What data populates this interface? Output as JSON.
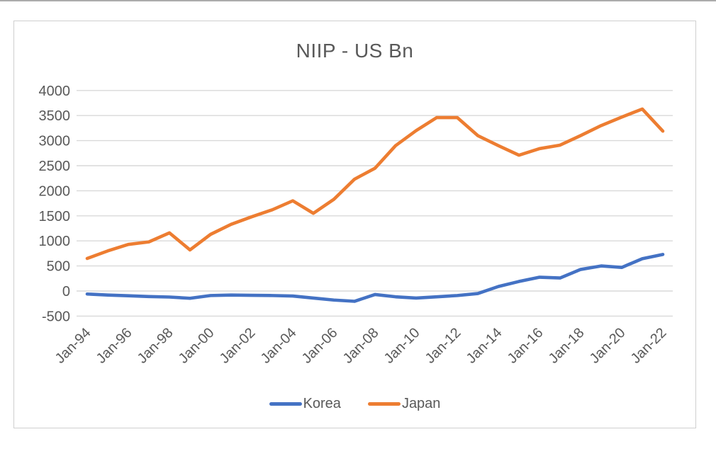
{
  "chart_data": {
    "type": "line",
    "title": "NIIP - US Bn",
    "xlabel": "",
    "ylabel": "",
    "ylim": [
      -500,
      4000
    ],
    "ytick_step": 500,
    "ytick_labels": [
      "4000",
      "3500",
      "3000",
      "2500",
      "2000",
      "1500",
      "1000",
      "500",
      "0",
      "-500"
    ],
    "grid": true,
    "legend_position": "bottom",
    "x_tick_every": 2,
    "categories": [
      "Jan-94",
      "Jan-95",
      "Jan-96",
      "Jan-97",
      "Jan-98",
      "Jan-99",
      "Jan-00",
      "Jan-01",
      "Jan-02",
      "Jan-03",
      "Jan-04",
      "Jan-05",
      "Jan-06",
      "Jan-07",
      "Jan-08",
      "Jan-09",
      "Jan-10",
      "Jan-11",
      "Jan-12",
      "Jan-13",
      "Jan-14",
      "Jan-15",
      "Jan-16",
      "Jan-17",
      "Jan-18",
      "Jan-19",
      "Jan-20",
      "Jan-21",
      "Jan-22"
    ],
    "series": [
      {
        "name": "Korea",
        "color": "#4472C4",
        "values": [
          -60,
          -80,
          -95,
          -110,
          -120,
          -145,
          -90,
          -80,
          -85,
          -90,
          -100,
          -140,
          -180,
          -205,
          -70,
          -115,
          -140,
          -115,
          -90,
          -50,
          90,
          190,
          275,
          260,
          430,
          500,
          470,
          645,
          730
        ]
      },
      {
        "name": "Japan",
        "color": "#ED7D31",
        "values": [
          650,
          800,
          930,
          980,
          1160,
          820,
          1130,
          1330,
          1480,
          1620,
          1800,
          1550,
          1830,
          2230,
          2450,
          2900,
          3200,
          3460,
          3460,
          3100,
          2900,
          2710,
          2840,
          2910,
          3100,
          3300,
          3470,
          3630,
          3190
        ]
      }
    ],
    "colors": {
      "axis_text": "#595959",
      "title_text": "#595959",
      "gridline": "#D9D9D9",
      "card_border": "#CFCFCF",
      "background": "#FFFFFF"
    }
  }
}
